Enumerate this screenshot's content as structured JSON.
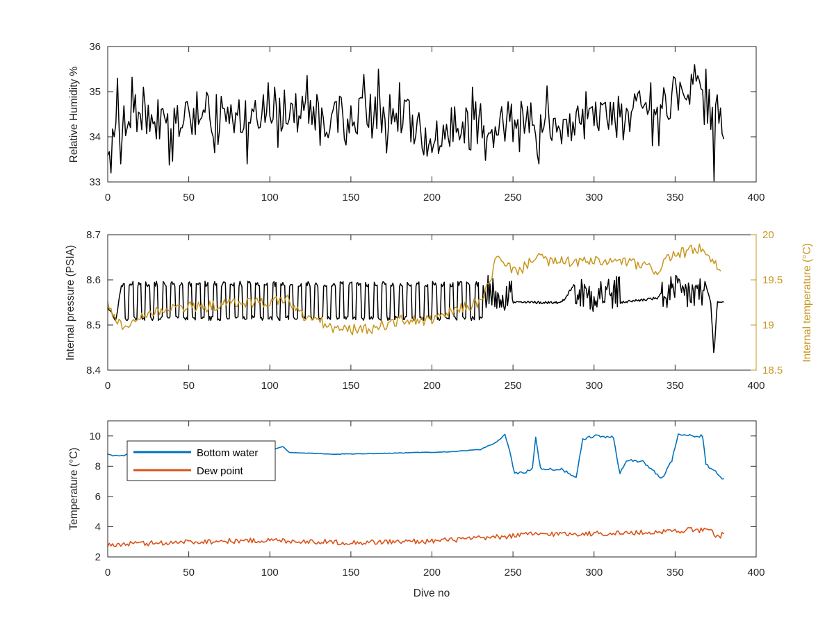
{
  "chart_data": [
    {
      "type": "line",
      "id": "humidity",
      "xlabel": "",
      "ylabel": "Relative Humidity %",
      "xlim": [
        0,
        400
      ],
      "ylim": [
        33,
        36
      ],
      "xticks": [
        0,
        50,
        100,
        150,
        200,
        250,
        300,
        350,
        400
      ],
      "yticks": [
        33,
        34,
        35,
        36
      ],
      "series": [
        {
          "color": "#000000",
          "baseline": [
            [
              0,
              33.6
            ],
            [
              10,
              34.5
            ],
            [
              40,
              34.3
            ],
            [
              60,
              34.5
            ],
            [
              90,
              34.3
            ],
            [
              100,
              34.7
            ],
            [
              120,
              34.5
            ],
            [
              150,
              34.4
            ],
            [
              180,
              34.5
            ],
            [
              195,
              34.0
            ],
            [
              210,
              34.2
            ],
            [
              250,
              34.3
            ],
            [
              280,
              34.3
            ],
            [
              300,
              34.4
            ],
            [
              320,
              34.4
            ],
            [
              340,
              34.7
            ],
            [
              360,
              35.0
            ],
            [
              370,
              34.7
            ],
            [
              380,
              34.3
            ]
          ],
          "peaks": [
            [
              2,
              33.2
            ],
            [
              6,
              35.3
            ],
            [
              8,
              33.4
            ],
            [
              22,
              35.1
            ],
            [
              55,
              35.0
            ],
            [
              86,
              33.4
            ],
            [
              99,
              35.2
            ],
            [
              103,
              35.1
            ],
            [
              120,
              34.9
            ],
            [
              143,
              34.9
            ],
            [
              167,
              35.5
            ],
            [
              180,
              35.2
            ],
            [
              195,
              33.6
            ],
            [
              205,
              33.8
            ],
            [
              225,
              35.1
            ],
            [
              266,
              33.4
            ],
            [
              295,
              35.0
            ],
            [
              315,
              34.9
            ],
            [
              335,
              35.2
            ],
            [
              350,
              35.3
            ],
            [
              362,
              35.6
            ],
            [
              369,
              35.5
            ],
            [
              374,
              33.0
            ],
            [
              377,
              34.3
            ]
          ]
        }
      ]
    },
    {
      "type": "line",
      "id": "pressure",
      "xlabel": "",
      "ylabel": "Internal pressure (PSIA)",
      "y2label": "Internal temperature (°C)",
      "xlim": [
        0,
        400
      ],
      "ylim": [
        8.4,
        8.7
      ],
      "y2lim": [
        18.5,
        20
      ],
      "xticks": [
        0,
        50,
        100,
        150,
        200,
        250,
        300,
        350,
        400
      ],
      "yticks": [
        8.4,
        8.5,
        8.6,
        8.7
      ],
      "y2ticks": [
        18.5,
        19,
        19.5,
        20
      ],
      "series": [
        {
          "name": "",
          "axis": "left",
          "color": "#000000",
          "points": [
            [
              0,
              8.54
            ],
            [
              5,
              8.51
            ],
            [
              8,
              8.58
            ],
            [
              10,
              8.51
            ],
            [
              15,
              8.58
            ],
            [
              20,
              8.51
            ],
            [
              50,
              8.59
            ],
            [
              80,
              8.59
            ],
            [
              150,
              8.58
            ],
            [
              158,
              8.51
            ],
            [
              165,
              8.58
            ],
            [
              200,
              8.52
            ],
            [
              210,
              8.59
            ],
            [
              232,
              8.59
            ],
            [
              235,
              8.55
            ],
            [
              240,
              8.6
            ],
            [
              250,
              8.55
            ],
            [
              280,
              8.55
            ],
            [
              290,
              8.6
            ],
            [
              316,
              8.55
            ],
            [
              340,
              8.56
            ],
            [
              345,
              8.6
            ],
            [
              368,
              8.6
            ],
            [
              372,
              8.55
            ],
            [
              374,
              8.43
            ],
            [
              376,
              8.55
            ],
            [
              380,
              8.55
            ]
          ]
        },
        {
          "name": "",
          "axis": "right",
          "color": "#c8961e",
          "points": [
            [
              0,
              19.2
            ],
            [
              10,
              18.95
            ],
            [
              20,
              19.1
            ],
            [
              40,
              19.2
            ],
            [
              60,
              19.2
            ],
            [
              80,
              19.25
            ],
            [
              100,
              19.25
            ],
            [
              110,
              19.3
            ],
            [
              120,
              19.1
            ],
            [
              130,
              19.05
            ],
            [
              140,
              18.95
            ],
            [
              160,
              18.95
            ],
            [
              180,
              19.05
            ],
            [
              200,
              19.05
            ],
            [
              220,
              19.2
            ],
            [
              230,
              19.25
            ],
            [
              236,
              19.5
            ],
            [
              240,
              19.75
            ],
            [
              245,
              19.65
            ],
            [
              255,
              19.6
            ],
            [
              265,
              19.8
            ],
            [
              270,
              19.7
            ],
            [
              300,
              19.7
            ],
            [
              320,
              19.7
            ],
            [
              340,
              19.6
            ],
            [
              345,
              19.75
            ],
            [
              365,
              19.85
            ],
            [
              370,
              19.75
            ],
            [
              378,
              19.6
            ]
          ]
        }
      ]
    },
    {
      "type": "line",
      "id": "temperature",
      "xlabel": "Dive no",
      "ylabel": "Temperature (°C)",
      "xlim": [
        0,
        400
      ],
      "ylim": [
        2,
        11
      ],
      "xticks": [
        0,
        50,
        100,
        150,
        200,
        250,
        300,
        350,
        400
      ],
      "yticks": [
        2,
        4,
        6,
        8,
        10
      ],
      "legend": "top-left",
      "series": [
        {
          "name": "Bottom water",
          "color": "#0072bd",
          "points": [
            [
              0,
              8.8
            ],
            [
              3,
              8.7
            ],
            [
              10,
              8.7
            ],
            [
              15,
              9.0
            ],
            [
              60,
              9.0
            ],
            [
              100,
              9.0
            ],
            [
              108,
              9.3
            ],
            [
              112,
              8.9
            ],
            [
              140,
              8.8
            ],
            [
              170,
              8.85
            ],
            [
              210,
              8.95
            ],
            [
              230,
              9.1
            ],
            [
              240,
              9.6
            ],
            [
              245,
              10.1
            ],
            [
              248,
              9.0
            ],
            [
              251,
              7.5
            ],
            [
              258,
              7.6
            ],
            [
              262,
              7.9
            ],
            [
              264,
              10.0
            ],
            [
              267,
              7.8
            ],
            [
              280,
              7.8
            ],
            [
              289,
              7.2
            ],
            [
              293,
              9.8
            ],
            [
              300,
              10.0
            ],
            [
              312,
              9.9
            ],
            [
              316,
              7.5
            ],
            [
              320,
              8.4
            ],
            [
              330,
              8.3
            ],
            [
              342,
              7.2
            ],
            [
              348,
              8.4
            ],
            [
              352,
              10.1
            ],
            [
              360,
              10.0
            ],
            [
              367,
              10.0
            ],
            [
              369,
              8.1
            ],
            [
              375,
              7.6
            ],
            [
              380,
              7.1
            ]
          ]
        },
        {
          "name": "Dew point",
          "color": "#d95319",
          "points": [
            [
              0,
              2.8
            ],
            [
              50,
              3.0
            ],
            [
              100,
              3.1
            ],
            [
              150,
              2.95
            ],
            [
              200,
              3.05
            ],
            [
              240,
              3.3
            ],
            [
              260,
              3.5
            ],
            [
              300,
              3.55
            ],
            [
              330,
              3.6
            ],
            [
              360,
              3.8
            ],
            [
              373,
              3.7
            ],
            [
              375,
              3.3
            ],
            [
              380,
              3.5
            ]
          ]
        }
      ]
    }
  ]
}
